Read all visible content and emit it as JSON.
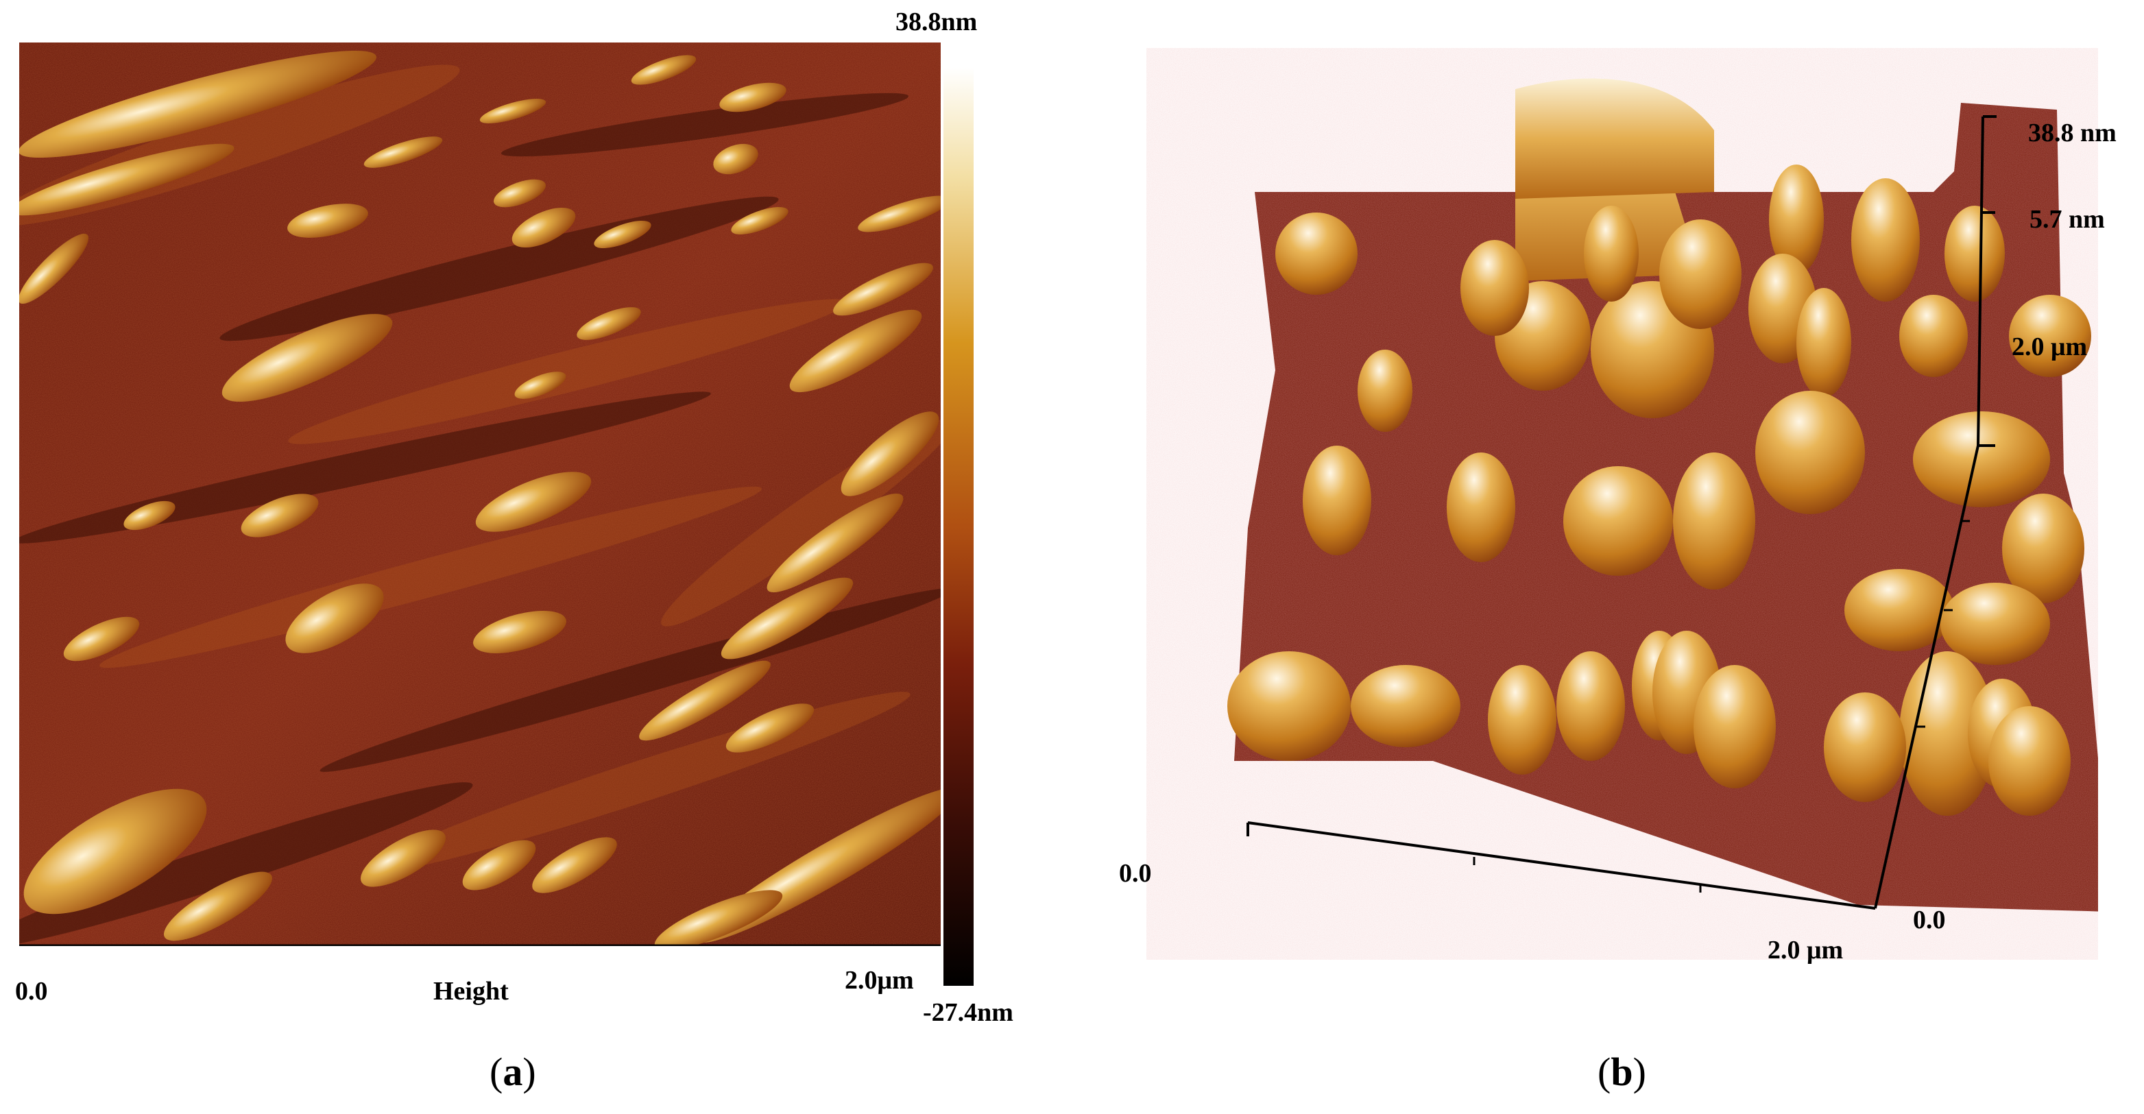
{
  "panel_a": {
    "colorbar_max": "38.8nm",
    "colorbar_min": "-27.4nm",
    "x_start": "0.0",
    "x_end": "2.0μm",
    "channel": "Height",
    "caption": "a"
  },
  "panel_b": {
    "z_max": "38.8 nm",
    "z_mid": "5.7 nm",
    "y_end": "2.0 μm",
    "x_start": "0.0",
    "y_start": "0.0",
    "x_end": "2.0 μm",
    "caption": "b"
  },
  "colors": {
    "dark": "#2a0d05",
    "mid": "#7a2010",
    "orange": "#c27318",
    "gold": "#dca43a",
    "highlight": "#fff6e0"
  }
}
